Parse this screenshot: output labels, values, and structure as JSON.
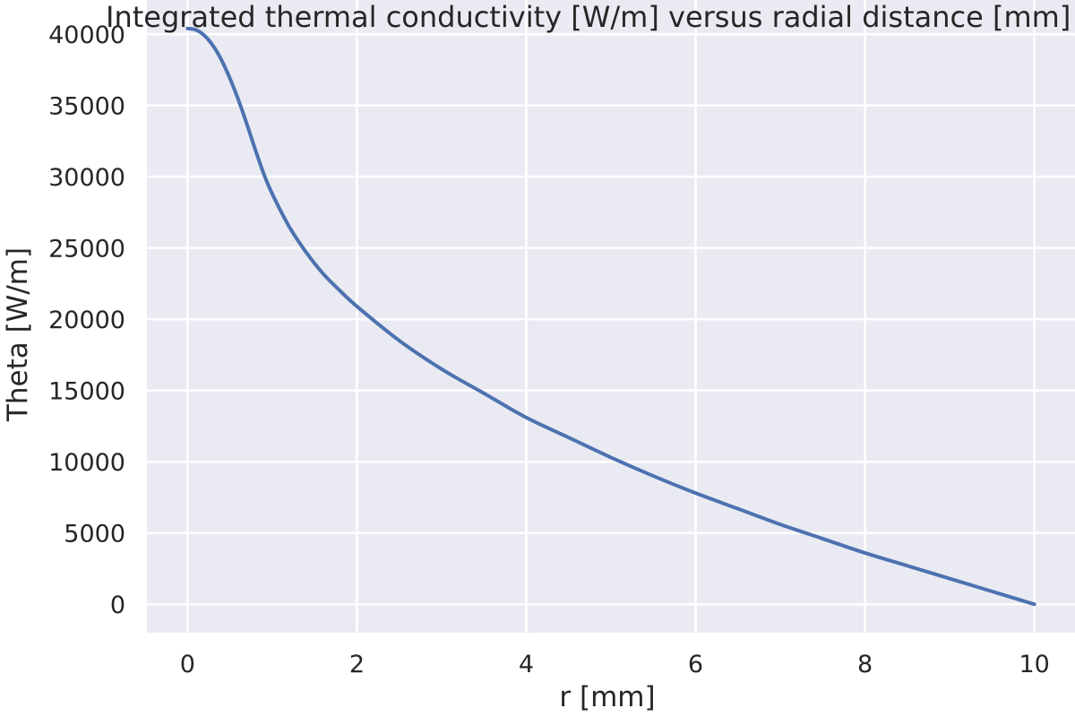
{
  "chart_data": {
    "type": "line",
    "title": "Integrated thermal conductivity [W/m] versus radial distance [mm]",
    "xlabel": "r [mm]",
    "ylabel": "Theta [W/m]",
    "xlim": [
      -0.48,
      10.48
    ],
    "ylim": [
      -2000,
      42400
    ],
    "grid": true,
    "legend": false,
    "x_ticks": [
      0,
      2,
      4,
      6,
      8,
      10
    ],
    "x_tick_labels": [
      "0",
      "2",
      "4",
      "6",
      "8",
      "10"
    ],
    "y_ticks": [
      0,
      5000,
      10000,
      15000,
      20000,
      25000,
      30000,
      35000,
      40000
    ],
    "y_tick_labels": [
      "0",
      "5000",
      "10000",
      "15000",
      "20000",
      "25000",
      "30000",
      "35000",
      "40000"
    ],
    "colors": {
      "background": "#EAEAF2",
      "grid": "#FFFFFF",
      "line": "#4C72B0",
      "text": "#262626"
    },
    "series": [
      {
        "x": [
          0,
          0.1,
          0.2,
          0.3,
          0.4,
          0.5,
          0.6,
          0.7,
          0.8,
          0.9,
          1.0,
          1.2,
          1.4,
          1.6,
          1.8,
          2.0,
          2.5,
          3.0,
          3.5,
          4.0,
          4.5,
          5.0,
          5.5,
          6.0,
          6.5,
          7.0,
          7.5,
          8.0,
          8.5,
          9.0,
          9.5,
          10.0
        ],
        "y": [
          40400,
          40300,
          39900,
          39200,
          38200,
          36900,
          35400,
          33700,
          31900,
          30200,
          28800,
          26500,
          24700,
          23200,
          22000,
          20900,
          18500,
          16500,
          14800,
          13100,
          11700,
          10300,
          9000,
          7800,
          6700,
          5600,
          4600,
          3600,
          2700,
          1800,
          900,
          0
        ]
      }
    ]
  }
}
